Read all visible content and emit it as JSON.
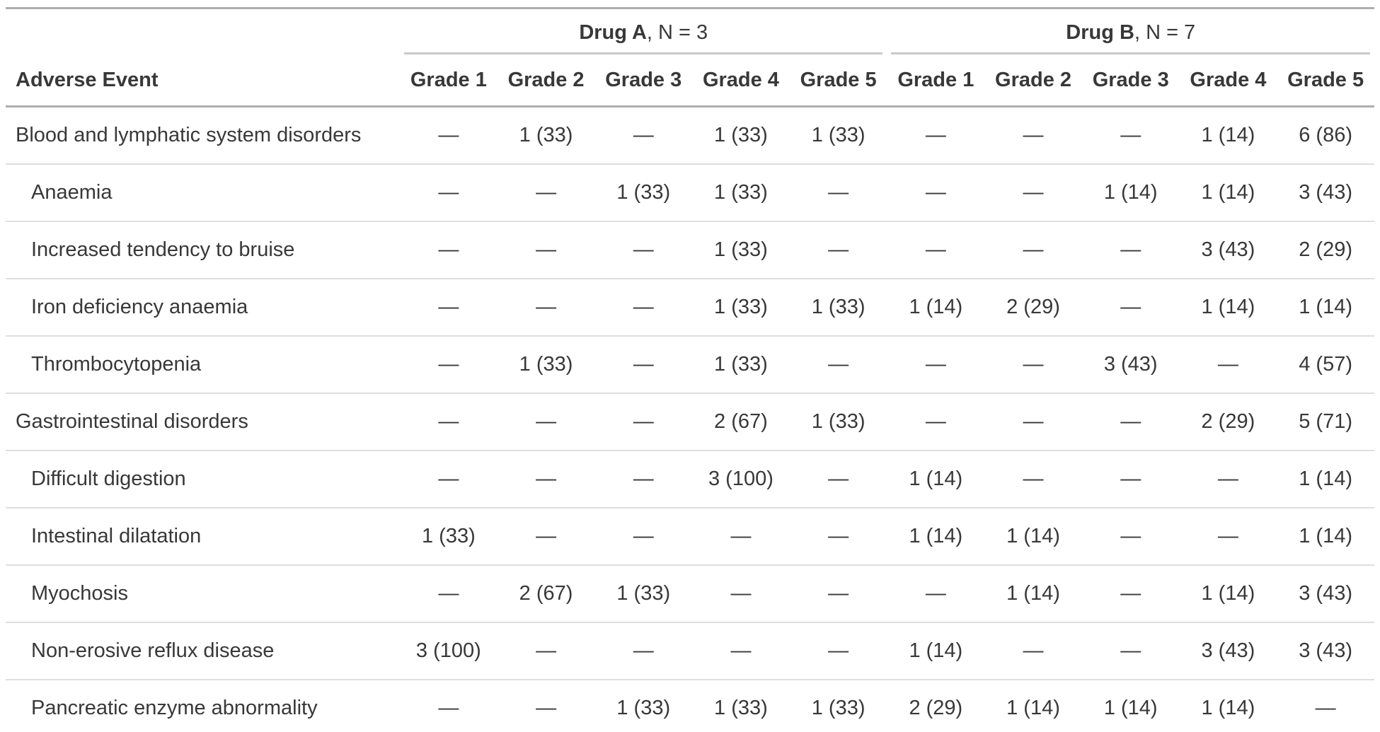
{
  "table": {
    "stub_header": "Adverse Event",
    "groups": [
      {
        "name": "Drug A",
        "n_label": ", N = 3"
      },
      {
        "name": "Drug B",
        "n_label": ", N = 7"
      }
    ],
    "grade_headers": [
      "Grade 1",
      "Grade 2",
      "Grade 3",
      "Grade 4",
      "Grade 5"
    ],
    "rows": [
      {
        "label": "Blood and lymphatic system disorders",
        "indent": false,
        "drug_a": [
          "—",
          "1 (33)",
          "—",
          "1 (33)",
          "1 (33)"
        ],
        "drug_b": [
          "—",
          "—",
          "—",
          "1 (14)",
          "6 (86)"
        ]
      },
      {
        "label": "Anaemia",
        "indent": true,
        "drug_a": [
          "—",
          "—",
          "1 (33)",
          "1 (33)",
          "—"
        ],
        "drug_b": [
          "—",
          "—",
          "1 (14)",
          "1 (14)",
          "3 (43)"
        ]
      },
      {
        "label": "Increased tendency to bruise",
        "indent": true,
        "drug_a": [
          "—",
          "—",
          "—",
          "1 (33)",
          "—"
        ],
        "drug_b": [
          "—",
          "—",
          "—",
          "3 (43)",
          "2 (29)"
        ]
      },
      {
        "label": "Iron deficiency anaemia",
        "indent": true,
        "drug_a": [
          "—",
          "—",
          "—",
          "1 (33)",
          "1 (33)"
        ],
        "drug_b": [
          "1 (14)",
          "2 (29)",
          "—",
          "1 (14)",
          "1 (14)"
        ]
      },
      {
        "label": "Thrombocytopenia",
        "indent": true,
        "drug_a": [
          "—",
          "1 (33)",
          "—",
          "1 (33)",
          "—"
        ],
        "drug_b": [
          "—",
          "—",
          "3 (43)",
          "—",
          "4 (57)"
        ]
      },
      {
        "label": "Gastrointestinal disorders",
        "indent": false,
        "drug_a": [
          "—",
          "—",
          "—",
          "2 (67)",
          "1 (33)"
        ],
        "drug_b": [
          "—",
          "—",
          "—",
          "2 (29)",
          "5 (71)"
        ]
      },
      {
        "label": "Difficult digestion",
        "indent": true,
        "drug_a": [
          "—",
          "—",
          "—",
          "3 (100)",
          "—"
        ],
        "drug_b": [
          "1 (14)",
          "—",
          "—",
          "—",
          "1 (14)"
        ]
      },
      {
        "label": "Intestinal dilatation",
        "indent": true,
        "drug_a": [
          "1 (33)",
          "—",
          "—",
          "—",
          "—"
        ],
        "drug_b": [
          "1 (14)",
          "1 (14)",
          "—",
          "—",
          "1 (14)"
        ]
      },
      {
        "label": "Myochosis",
        "indent": true,
        "drug_a": [
          "—",
          "2 (67)",
          "1 (33)",
          "—",
          "—"
        ],
        "drug_b": [
          "—",
          "1 (14)",
          "—",
          "1 (14)",
          "3 (43)"
        ]
      },
      {
        "label": "Non-erosive reflux disease",
        "indent": true,
        "drug_a": [
          "3 (100)",
          "—",
          "—",
          "—",
          "—"
        ],
        "drug_b": [
          "1 (14)",
          "—",
          "—",
          "3 (43)",
          "3 (43)"
        ]
      },
      {
        "label": "Pancreatic enzyme abnormality",
        "indent": true,
        "drug_a": [
          "—",
          "—",
          "1 (33)",
          "1 (33)",
          "1 (33)"
        ],
        "drug_b": [
          "2 (29)",
          "1 (14)",
          "1 (14)",
          "1 (14)",
          "—"
        ]
      }
    ],
    "colors": {
      "text": "#383838",
      "border_heavy": "#aeaeae",
      "border_spanner": "#c9c9c9",
      "border_row": "#dedede",
      "border_bottom": "#cfcfcf",
      "background": "#ffffff"
    }
  }
}
